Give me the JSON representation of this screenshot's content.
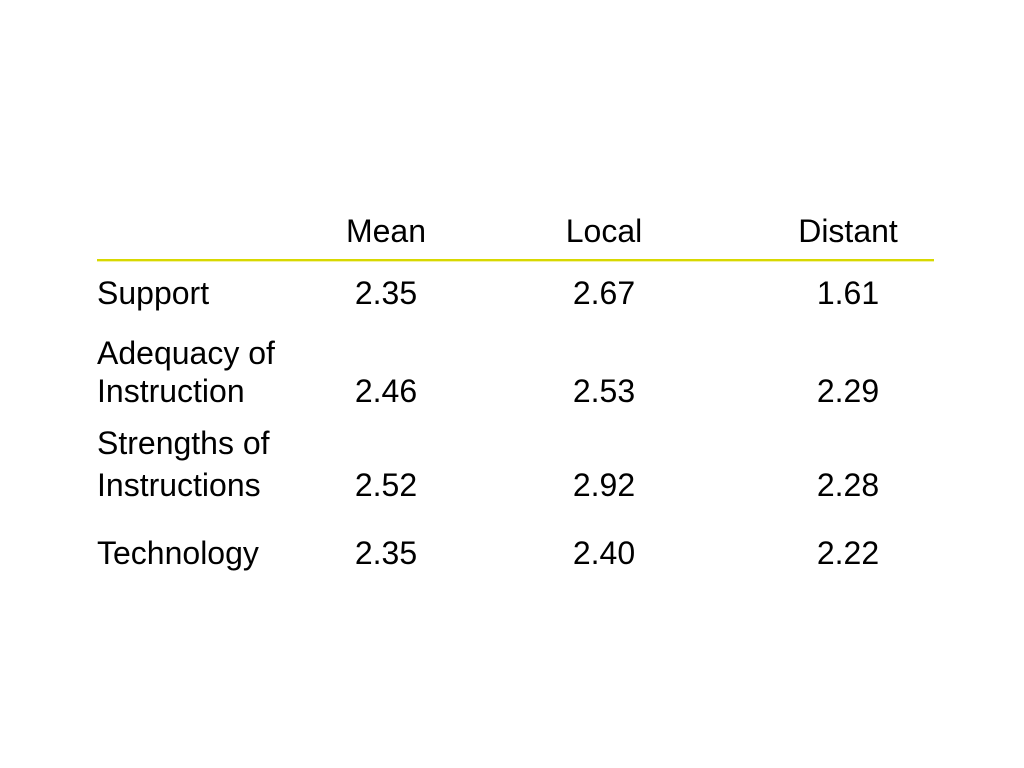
{
  "table": {
    "columns": [
      "Mean",
      "Local",
      "Distant"
    ],
    "rows": [
      {
        "label_line1": "Support",
        "label_line2": "",
        "values": [
          "2.35",
          "2.67",
          "1.61"
        ]
      },
      {
        "label_line1": "Adequacy of",
        "label_line2": "Instruction",
        "values": [
          "2.46",
          "2.53",
          "2.29"
        ]
      },
      {
        "label_line1": "Strengths of",
        "label_line2": "Instructions",
        "values": [
          "2.52",
          "2.92",
          "2.28"
        ]
      },
      {
        "label_line1": "Technology",
        "label_line2": "",
        "values": [
          "2.35",
          "2.40",
          "2.22"
        ]
      }
    ]
  },
  "colors": {
    "rule": "#d8d800",
    "text": "#000000",
    "background": "#ffffff"
  }
}
